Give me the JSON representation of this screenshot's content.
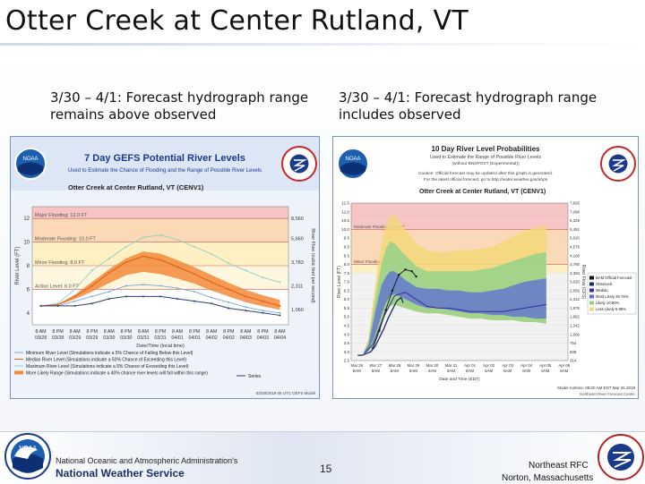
{
  "slide": {
    "title": "Otter Creek at Center Rutland, VT",
    "left_caption": "3/30 – 4/1: Forecast hydrograph range remains above observed",
    "right_caption": "3/30 – 4/1: Forecast hydrograph range includes observed",
    "page_number": "15",
    "noaa_line": "National Oceanic and Atmospheric Administration's",
    "nws_line": "National Weather Service",
    "rfc_line1": "Northeast RFC",
    "rfc_line2": "Norton, Massachusetts",
    "logo_text": "NOAA",
    "seal_text": "NATIONAL WEATHER SERVICE"
  },
  "colors": {
    "accent": "#1c3a8c",
    "orange_band": "#f28a3a",
    "blue_band": "#5a6ed6",
    "green_band": "#8fd28a",
    "yellow_band": "#f5d77a",
    "major_flood": "#f6c4c4",
    "moderate_flood": "#fbd9b6",
    "minor_flood": "#fff0c4",
    "action": "#fff7dd"
  },
  "chart_data": [
    {
      "type": "area",
      "title": "7 Day GEFS Potential River Levels",
      "subtitle": "Used to Estimate the Chance of Flooding and the Range of Possible River Levels",
      "station": "Otter Creek at Center Rutland, VT (CENV1)",
      "ylabel": "River Level (FT)",
      "y2label": "River Flow (cubic feet per second)",
      "xlabel": "Date/Time (local time)",
      "ylim": [
        3,
        13
      ],
      "yticks": [
        "4",
        "6",
        "8",
        "10",
        "12"
      ],
      "y2ticks": [
        "1,060",
        "2,311",
        "3,783",
        "5,660",
        "8,560"
      ],
      "flood_labels": [
        "Major Flooding: 12.0 FT",
        "Moderate Flooding: 10.0 FT",
        "Minor Flooding: 8.0 FT",
        "Action Level: 6.0 FT"
      ],
      "flood_levels": [
        12,
        10,
        8,
        6
      ],
      "x_ticks": [
        [
          "8 AM",
          "03/28"
        ],
        [
          "8 PM",
          "03/28"
        ],
        [
          "8 AM",
          "03/29"
        ],
        [
          "8 PM",
          "03/29"
        ],
        [
          "8 AM",
          "03/30"
        ],
        [
          "8 PM",
          "03/30"
        ],
        [
          "8 AM",
          "03/31"
        ],
        [
          "8 PM",
          "03/31"
        ],
        [
          "8 AM",
          "04/01"
        ],
        [
          "8 PM",
          "04/01"
        ],
        [
          "8 AM",
          "04/02"
        ],
        [
          "8 PM",
          "04/02"
        ],
        [
          "8 AM",
          "04/03"
        ],
        [
          "8 PM",
          "04/03"
        ],
        [
          "8 AM",
          "04/04"
        ]
      ],
      "series": [
        {
          "values": [
            4.6,
            4.7,
            5.4,
            6.3,
            7.4,
            8.3,
            8.8,
            8.5,
            7.9,
            7.3,
            6.6,
            6.0,
            5.4,
            5.0,
            4.6
          ]
        },
        {
          "values": [
            4.6,
            4.6,
            5.0,
            5.4,
            5.8,
            6.3,
            6.4,
            6.3,
            6.1,
            5.8,
            5.3,
            4.9,
            4.5,
            4.2,
            4.0
          ]
        },
        {
          "values": [
            4.6,
            4.8,
            6.0,
            7.6,
            8.6,
            9.6,
            10.4,
            10.6,
            10.2,
            9.6,
            9.0,
            8.2,
            7.6,
            7.0,
            6.6
          ]
        },
        {
          "values": [
            4.6,
            4.6,
            4.6,
            4.8,
            5.2,
            5.4,
            5.4,
            5.4,
            5.2,
            5.0,
            4.8,
            4.4,
            4.2,
            4.0,
            3.8
          ]
        }
      ],
      "legend": [
        "Minimum River Level (Simulations indicate a 5% Chance of Falling Below this Level)",
        "Median River Level (Simulations indicate a 50% Chance of Exceeding this Level)",
        "Maximum River Level (Simulations indicate a 5% Chance of Exceeding this Level)",
        "More Likely Range (Simulations indicate a 40% chance river levels will fall within this range)",
        "Series"
      ],
      "footnote": "03/28/2019 06 UTC GEFS Model"
    },
    {
      "type": "area",
      "title": "10 Day River Level Probabilities",
      "subtitle": "Used to Estimate the Range of Possible River Levels",
      "note1": "(without BNSPOST (Experimental))",
      "note2": "Caution: Official forecast may be updated after this graph is generated.",
      "note3": "For the latest official forecast, go to http://water.weather.gov/ahps",
      "station": "Otter Creek at Center Rutland, VT (CENV1)",
      "ylabel": "River Level (FT)",
      "y2label": "River Flow (CFS)",
      "xlabel": "Date and Time (EDT)",
      "ylim": [
        2.5,
        11.5
      ],
      "yticks": [
        "2.5",
        "3.0",
        "3.5",
        "4.0",
        "4.5",
        "5.0",
        "5.5",
        "6.0",
        "6.5",
        "7.0",
        "7.5",
        "8.0",
        "8.5",
        "9.0",
        "9.5",
        "10.0",
        "10.5",
        "11.0",
        "11.5"
      ],
      "y2ticks": [
        "314",
        "509",
        "764",
        "1,066",
        "1,342",
        "1,662",
        "1,979",
        "2,312",
        "2,659",
        "3,020",
        "3,394",
        "3,780",
        "4,188",
        "4,579",
        "5,020",
        "5,451",
        "6,329",
        "7,098",
        "7,826"
      ],
      "flood_labels": [
        "Moderate Flooding: 10.0 FT",
        "Minor Flooding: 8.0 FT"
      ],
      "flood_levels": [
        10.0,
        8.0
      ],
      "x_ticks": [
        [
          "Mar 26",
          "8AM"
        ],
        [
          "Mar 27",
          "8AM"
        ],
        [
          "Mar 28",
          "8AM"
        ],
        [
          "Mar 29",
          "8AM"
        ],
        [
          "Mar 30",
          "8AM"
        ],
        [
          "Mar 31",
          "8AM"
        ],
        [
          "Apr 01",
          "8AM"
        ],
        [
          "Apr 02",
          "8AM"
        ],
        [
          "Apr 03",
          "8AM"
        ],
        [
          "Apr 04",
          "8AM"
        ],
        [
          "Apr 05",
          "8AM"
        ],
        [
          "Apr 06",
          "8AM"
        ]
      ],
      "x": [
        2.6,
        2.8,
        3.0,
        3.2,
        3.4,
        3.6,
        3.8,
        4.0,
        4.2,
        4.5,
        5.0,
        5.5,
        6.0,
        6.5,
        7.0,
        7.5,
        8.0,
        8.5,
        9.0,
        9.5,
        10.0,
        10.5,
        11.0
      ],
      "bands": {
        "p5": [
          2.9,
          3.0,
          3.3,
          3.8,
          4.5,
          5.2,
          5.6,
          5.7,
          5.6,
          5.5,
          5.3,
          5.2,
          5.2,
          5.1,
          5.0,
          4.9,
          4.9,
          4.8,
          4.8,
          4.8,
          4.7,
          4.7,
          4.6
        ],
        "p25": [
          2.9,
          3.1,
          3.6,
          4.3,
          5.1,
          5.8,
          6.2,
          6.3,
          6.2,
          6.0,
          5.7,
          5.5,
          5.5,
          5.4,
          5.3,
          5.2,
          5.2,
          5.1,
          5.1,
          5.0,
          5.0,
          4.9,
          4.9
        ],
        "p75": [
          3.0,
          3.4,
          4.6,
          5.8,
          6.8,
          7.3,
          7.6,
          7.6,
          7.4,
          7.1,
          6.7,
          6.6,
          6.6,
          6.5,
          6.5,
          6.4,
          6.4,
          6.5,
          6.6,
          6.8,
          7.0,
          7.1,
          7.2
        ],
        "p90": [
          3.0,
          3.6,
          5.2,
          6.7,
          8.0,
          8.9,
          9.3,
          9.2,
          8.9,
          8.5,
          7.9,
          7.6,
          7.6,
          7.6,
          7.6,
          7.6,
          7.7,
          7.8,
          8.0,
          8.2,
          8.4,
          8.6,
          8.7
        ],
        "p95": [
          3.1,
          3.8,
          5.8,
          7.6,
          9.1,
          10.2,
          10.8,
          10.8,
          10.5,
          10.0,
          9.2,
          8.8,
          8.7,
          8.7,
          8.8,
          8.8,
          8.9,
          9.0,
          9.3,
          9.6,
          9.9,
          10.1,
          10.2
        ]
      },
      "official": {
        "x": [
          3.0,
          3.3,
          3.6,
          3.9,
          4.2,
          4.5,
          4.8,
          5.0
        ],
        "y": [
          3.2,
          4.2,
          5.4,
          6.5,
          7.4,
          7.7,
          7.6,
          7.3
        ]
      },
      "observed": {
        "x": [
          2.3,
          2.5,
          2.7,
          2.9,
          3.1,
          3.3,
          3.5,
          3.7,
          3.9,
          4.1,
          4.3,
          4.4
        ],
        "y": [
          2.8,
          2.8,
          2.9,
          3.0,
          3.3,
          3.8,
          4.3,
          4.9,
          5.4,
          5.9,
          6.1,
          5.8
        ]
      },
      "median": {
        "x": [
          2.6,
          3.0,
          3.5,
          4.0,
          4.5,
          5.0,
          5.5,
          6.0,
          6.5,
          7.0,
          7.5,
          8.0,
          8.5,
          9.0,
          9.5,
          10.0,
          10.5,
          11.0
        ],
        "y": [
          2.9,
          3.4,
          5.0,
          6.2,
          6.4,
          6.0,
          5.6,
          5.5,
          5.5,
          5.4,
          5.3,
          5.3,
          5.3,
          5.3,
          5.4,
          5.5,
          5.6,
          5.7
        ]
      },
      "legend": [
        "BAM Official Forecast",
        "Observed",
        "Median",
        "Most Likely 25-75%",
        "Likely 10-90%",
        "Less Likely 5-95%"
      ],
      "footnote1": "Model runtime: 08:00 AM EDT Mar 26 2019",
      "footnote2": "Northeast River Forecast Center"
    }
  ]
}
